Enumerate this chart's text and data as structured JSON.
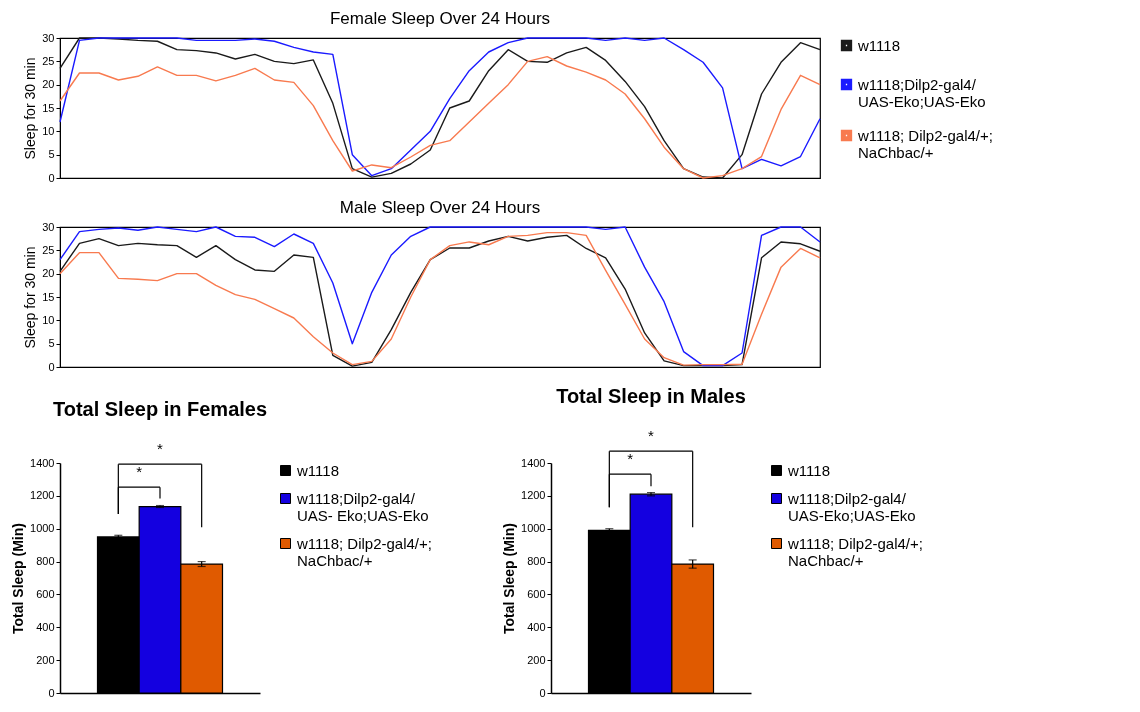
{
  "chart_data": [
    {
      "type": "line",
      "title": "Female Sleep Over 24 Hours",
      "ylabel": "Sleep for 30 min",
      "categories": [
        null,
        null,
        null,
        null,
        null,
        null,
        null,
        null,
        null,
        null,
        null,
        null,
        null,
        null,
        null,
        null,
        null,
        null,
        null,
        null,
        null,
        null,
        null,
        null,
        null,
        null,
        null,
        null,
        null,
        null,
        null,
        null,
        null,
        null,
        null,
        null,
        null,
        null,
        null,
        null
      ],
      "ylim": [
        0,
        30
      ],
      "yticks": [
        0,
        5,
        10,
        15,
        20,
        25,
        30
      ],
      "legend": "right",
      "tick_labels": "y",
      "series": [
        {
          "name": "w1118",
          "color": "#1a1a1a",
          "values": [
            23.5,
            30,
            30,
            29.8,
            29.5,
            29.3,
            27.5,
            27.3,
            26.8,
            25.5,
            26.5,
            25,
            24.5,
            25.3,
            16,
            2,
            0.2,
            1,
            3,
            6,
            15,
            16.5,
            23,
            27.5,
            25,
            24.8,
            26.8,
            28,
            25.2,
            20.7,
            15.3,
            8,
            2,
            0.2,
            0,
            5,
            18,
            24.8,
            29,
            27.5
          ]
        },
        {
          "name": "w1118;Dilp2-gal4/UAS-Eko;UAS-Eko",
          "color": "#1a1aff",
          "values": [
            12,
            29.5,
            30,
            30,
            30,
            30,
            30,
            29.5,
            29.5,
            29.5,
            29.8,
            29.3,
            28,
            27,
            26.5,
            5,
            0.5,
            2,
            6,
            10,
            17,
            23,
            27,
            29,
            30,
            30,
            30,
            30,
            29.5,
            30,
            29.5,
            30,
            27.5,
            24.8,
            19.3,
            2,
            4,
            2.6,
            4.6,
            12.7
          ]
        },
        {
          "name": "w1118; Dilp2-gal4/+; NaChbac/+",
          "color": "#f87a4f",
          "values": [
            16.5,
            22.5,
            22.5,
            21,
            21.8,
            23.8,
            22,
            22,
            20.8,
            22,
            23.5,
            21,
            20.5,
            15.5,
            8,
            1.5,
            2.8,
            2.2,
            4.5,
            7,
            8,
            12,
            16,
            20,
            25,
            26,
            24,
            22.7,
            21,
            18,
            12.7,
            6.6,
            2,
            0,
            0.5,
            2,
            4.6,
            14.7,
            22,
            20
          ]
        }
      ]
    },
    {
      "type": "line",
      "title": "Male Sleep Over 24 Hours",
      "ylabel": "Sleep for 30 min",
      "categories": [
        null,
        null,
        null,
        null,
        null,
        null,
        null,
        null,
        null,
        null,
        null,
        null,
        null,
        null,
        null,
        null,
        null,
        null,
        null,
        null,
        null,
        null,
        null,
        null,
        null,
        null,
        null,
        null,
        null,
        null,
        null,
        null,
        null,
        null,
        null,
        null,
        null,
        null,
        null,
        null
      ],
      "ylim": [
        0,
        30
      ],
      "yticks": [
        0,
        5,
        10,
        15,
        20,
        25,
        30
      ],
      "tick_labels": "y",
      "series": [
        {
          "color": "#1a1a1a",
          "values": [
            20.5,
            26.5,
            27.5,
            26,
            26.5,
            26.2,
            26,
            23.5,
            26,
            23,
            20.8,
            20.5,
            24,
            23.5,
            2.5,
            0.2,
            1,
            8,
            16,
            23,
            25.5,
            25.5,
            27,
            28,
            27,
            27.8,
            28.2,
            25.4,
            23.4,
            16.7,
            7.3,
            1.3,
            0.3,
            0.3,
            0.3,
            0.5,
            23.4,
            26.8,
            26.4,
            24.8
          ]
        },
        {
          "color": "#1a1aff",
          "values": [
            23,
            29,
            29.5,
            29.8,
            29.3,
            30,
            29.5,
            29,
            30,
            28,
            27.8,
            25.8,
            28.5,
            26.5,
            18,
            5,
            16,
            24,
            28,
            30,
            30,
            30,
            30,
            30,
            30,
            30,
            30,
            30,
            29.5,
            30,
            21.4,
            14,
            3.3,
            0.3,
            0.3,
            3,
            28.2,
            30,
            30,
            26.8
          ]
        },
        {
          "color": "#f87a4f",
          "values": [
            20,
            24.5,
            24.5,
            19,
            18.8,
            18.5,
            20,
            20,
            17.5,
            15.5,
            14.5,
            12.5,
            10.5,
            6.5,
            3,
            0.5,
            1.2,
            6,
            15,
            23,
            26,
            26.8,
            26.2,
            28,
            28.2,
            28.8,
            28.8,
            28.2,
            20.7,
            13.4,
            6,
            2,
            0.4,
            0.5,
            0.5,
            0.6,
            11.3,
            21.4,
            25.4,
            23.4
          ]
        }
      ]
    },
    {
      "type": "bar",
      "title": "Total Sleep in Females",
      "ylabel": "Total Sleep (Min)",
      "categories": [
        null
      ],
      "ylim": [
        0,
        1400
      ],
      "yticks": [
        0,
        200,
        400,
        600,
        800,
        1000,
        1200,
        1400
      ],
      "legend": "right",
      "tick_labels": "y",
      "annotations": [
        "*",
        "*"
      ],
      "series": [
        {
          "name": "w1118",
          "color": "#000000",
          "values": [
            950
          ],
          "errors": [
            10
          ]
        },
        {
          "name": "w1118;Dilp2-gal4/UAS- Eko;UAS-Eko",
          "color": "#1400e0",
          "values": [
            1135
          ],
          "errors": [
            6
          ]
        },
        {
          "name": "w1118; Dilp2-gal4/+; NaChbac/+",
          "color": "#e05a00",
          "values": [
            785
          ],
          "errors": [
            15
          ]
        }
      ]
    },
    {
      "type": "bar",
      "title": "Total Sleep in Males",
      "ylabel": "Total Sleep (Min)",
      "categories": [
        null
      ],
      "ylim": [
        0,
        1400
      ],
      "yticks": [
        0,
        200,
        400,
        600,
        800,
        1000,
        1200,
        1400
      ],
      "legend": "right",
      "tick_labels": "y",
      "annotations": [
        "*",
        "*"
      ],
      "series": [
        {
          "name": "w1118",
          "color": "#000000",
          "values": [
            990
          ],
          "errors": [
            10
          ]
        },
        {
          "name": "w1118;Dilp2-gal4/UAS-Eko;UAS-Eko",
          "color": "#1400e0",
          "values": [
            1210
          ],
          "errors": [
            10
          ]
        },
        {
          "name": "w1118; Dilp2-gal4/+; NaChbac/+",
          "color": "#e05a00",
          "values": [
            785
          ],
          "errors": [
            25
          ]
        }
      ]
    }
  ]
}
